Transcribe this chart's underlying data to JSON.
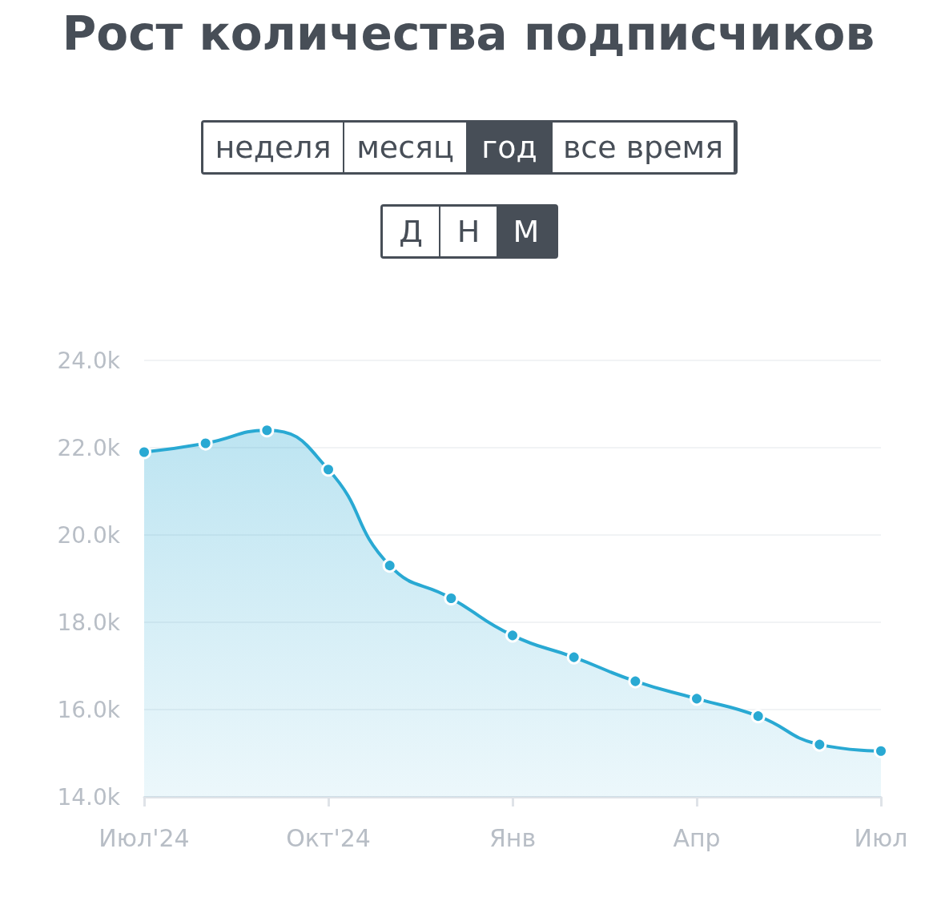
{
  "chart_data": {
    "type": "area",
    "title": "Рост количества подписчиков",
    "annotations": [
      "неделя",
      "месяц",
      "год",
      "все время",
      "Д",
      "Н",
      "М"
    ],
    "categories": [
      "Июл'24",
      null,
      null,
      "Окт'24",
      null,
      null,
      "Янв",
      null,
      null,
      "Апр",
      null,
      null,
      "Июл"
    ],
    "series": [
      {
        "color": "#29a9d3",
        "values": [
          21900,
          22100,
          22400,
          21500,
          19300,
          18550,
          17700,
          17200,
          16650,
          16250,
          15850,
          15200,
          15050
        ]
      }
    ],
    "ylim": [
      14000,
      24000
    ],
    "yticks": [
      {
        "value": 14000,
        "label": "14.0k"
      },
      {
        "value": 16000,
        "label": "16.0k"
      },
      {
        "value": 18000,
        "label": "18.0k"
      },
      {
        "value": 20000,
        "label": "20.0k"
      },
      {
        "value": 22000,
        "label": "22.0k"
      },
      {
        "value": 24000,
        "label": "24.0k"
      }
    ],
    "grid": "y",
    "marker": "circle",
    "line_style": "solid"
  }
}
